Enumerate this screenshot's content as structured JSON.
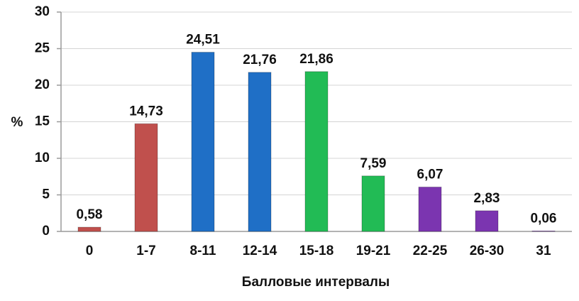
{
  "chart_data": {
    "type": "bar",
    "x_label": "Балловые интервалы",
    "y_label": "%",
    "categories": [
      "0",
      "1-7",
      "8-11",
      "12-14",
      "15-18",
      "19-21",
      "22-25",
      "26-30",
      "31"
    ],
    "values": [
      0.58,
      14.73,
      24.51,
      21.76,
      21.86,
      7.59,
      6.07,
      2.83,
      0.06
    ],
    "value_labels": [
      "0,58",
      "14,73",
      "24,51",
      "21,76",
      "21,86",
      "7,59",
      "6,07",
      "2,83",
      "0,06"
    ],
    "colors": [
      "#c0504d",
      "#c0504d",
      "#1f6fc6",
      "#1f6fc6",
      "#22bb55",
      "#22bb55",
      "#7b35b0",
      "#7b35b0",
      "#7b35b0"
    ],
    "ylim": [
      0,
      30
    ],
    "yticks": [
      0,
      5,
      10,
      15,
      20,
      25,
      30
    ],
    "grid": true
  }
}
